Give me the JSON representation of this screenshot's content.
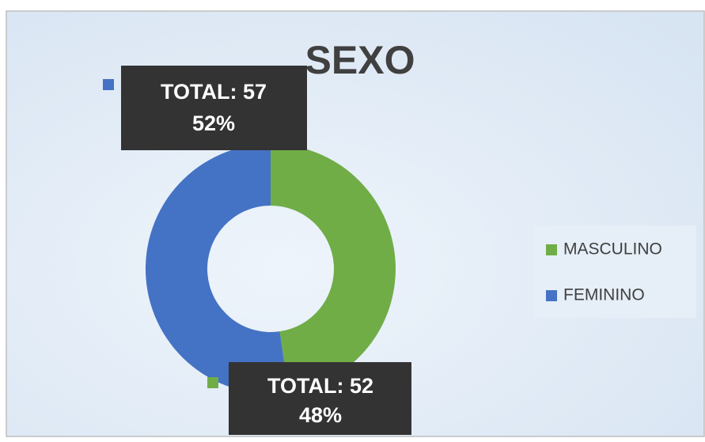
{
  "chart_data": {
    "type": "donut",
    "title": "SEXO",
    "categories": [
      "MASCULINO",
      "FEMININO"
    ],
    "values": [
      52,
      57
    ],
    "value_labels": [
      "TOTAL: 52",
      "TOTAL: 57"
    ],
    "percent_labels": [
      "48%",
      "52%"
    ],
    "colors": [
      "#70ad47",
      "#4472c4"
    ],
    "legend": "right"
  }
}
